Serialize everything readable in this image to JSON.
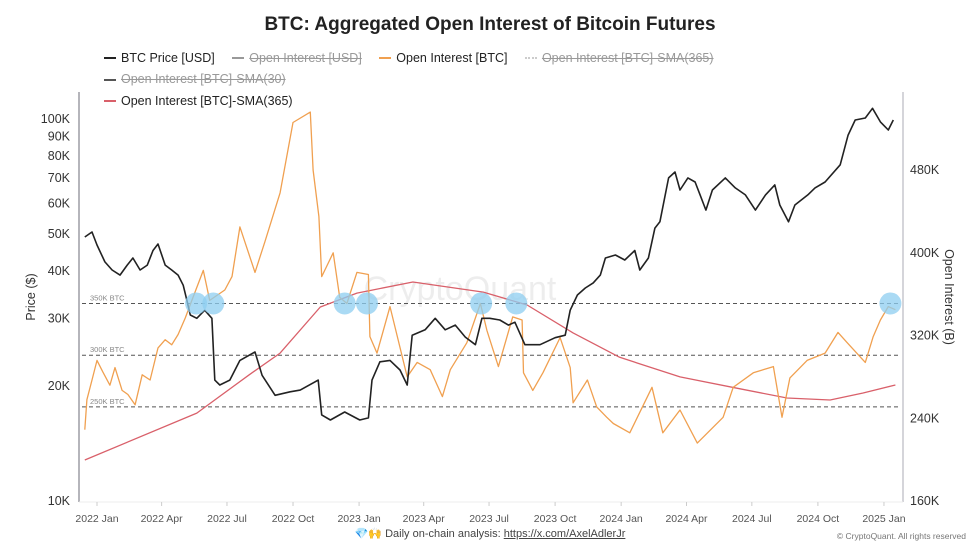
{
  "chart_data": {
    "type": "line",
    "title": "BTC: Aggregated Open Interest of Bitcoin Futures",
    "legend": [
      {
        "name": "BTC Price [USD]",
        "color": "#222222",
        "visible": true,
        "style": "solid"
      },
      {
        "name": "Open Interest [USD]",
        "color": "#999999",
        "visible": false,
        "style": "solid"
      },
      {
        "name": "Open Interest [BTC]",
        "color": "#f0a050",
        "visible": true,
        "style": "solid"
      },
      {
        "name": "Open Interest [BTC]-SMA(365)",
        "color": "#cccccc",
        "visible": false,
        "style": "dotted"
      },
      {
        "name": "Open Interest [BTC]-SMA(30)",
        "color": "#555555",
        "visible": false,
        "style": "dashed"
      },
      {
        "name": "Open Interest [BTC]-SMA(365)",
        "color": "#d9606a",
        "visible": true,
        "style": "solid"
      }
    ],
    "y_left": {
      "label": "Price ($)",
      "scale": "log",
      "range": [
        10000,
        110000
      ],
      "ticks": [
        {
          "v": 10000,
          "t": "10K"
        },
        {
          "v": 20000,
          "t": "20K"
        },
        {
          "v": 30000,
          "t": "30K"
        },
        {
          "v": 40000,
          "t": "40K"
        },
        {
          "v": 50000,
          "t": "50K"
        },
        {
          "v": 60000,
          "t": "60K"
        },
        {
          "v": 70000,
          "t": "70K"
        },
        {
          "v": 80000,
          "t": "80K"
        },
        {
          "v": 90000,
          "t": "90K"
        },
        {
          "v": 100000,
          "t": "100K"
        }
      ]
    },
    "y_right": {
      "label": "Open Interest (B)",
      "scale": "linear",
      "range": [
        160000,
        560000
      ],
      "ticks": [
        {
          "v": 160000,
          "t": "160K"
        },
        {
          "v": 240000,
          "t": "240K"
        },
        {
          "v": 320000,
          "t": "320K"
        },
        {
          "v": 400000,
          "t": "400K"
        },
        {
          "v": 480000,
          "t": "480K"
        }
      ]
    },
    "x_ticks": [
      {
        "d": "2022-01-01",
        "t": "2022 Jan"
      },
      {
        "d": "2022-04-01",
        "t": "2022 Apr"
      },
      {
        "d": "2022-07-01",
        "t": "2022 Jul"
      },
      {
        "d": "2022-10-01",
        "t": "2022 Oct"
      },
      {
        "d": "2023-01-01",
        "t": "2023 Jan"
      },
      {
        "d": "2023-04-01",
        "t": "2023 Apr"
      },
      {
        "d": "2023-07-01",
        "t": "2023 Jul"
      },
      {
        "d": "2023-10-01",
        "t": "2023 Oct"
      },
      {
        "d": "2024-01-01",
        "t": "2024 Jan"
      },
      {
        "d": "2024-04-01",
        "t": "2024 Apr"
      },
      {
        "d": "2024-07-01",
        "t": "2024 Jul"
      },
      {
        "d": "2024-10-01",
        "t": "2024 Oct"
      },
      {
        "d": "2025-01-01",
        "t": "2025 Jan"
      }
    ],
    "reference_lines": [
      {
        "value": 350000,
        "label": "350K BTC"
      },
      {
        "value": 300000,
        "label": "300K BTC"
      },
      {
        "value": 250000,
        "label": "250K BTC"
      }
    ],
    "highlight_dates": [
      "2022-05-19",
      "2022-06-12",
      "2022-12-12",
      "2023-01-12",
      "2023-06-20",
      "2023-08-08",
      "2025-01-10"
    ],
    "highlight_value": 350000,
    "highlight_color": "#8ecdf0",
    "btc_price": [
      [
        "2021-12-15",
        48800
      ],
      [
        "2021-12-25",
        50300
      ],
      [
        "2022-01-01",
        46500
      ],
      [
        "2022-01-12",
        42000
      ],
      [
        "2022-01-22",
        40000
      ],
      [
        "2022-02-02",
        38800
      ],
      [
        "2022-02-12",
        41200
      ],
      [
        "2022-02-20",
        43000
      ],
      [
        "2022-03-02",
        40000
      ],
      [
        "2022-03-12",
        41200
      ],
      [
        "2022-03-20",
        45000
      ],
      [
        "2022-03-27",
        46800
      ],
      [
        "2022-04-06",
        41200
      ],
      [
        "2022-04-15",
        40000
      ],
      [
        "2022-04-24",
        38800
      ],
      [
        "2022-05-01",
        36500
      ],
      [
        "2022-05-06",
        33400
      ],
      [
        "2022-05-11",
        30500
      ],
      [
        "2022-05-20",
        29900
      ],
      [
        "2022-05-31",
        31400
      ],
      [
        "2022-06-10",
        29900
      ],
      [
        "2022-06-14",
        20600
      ],
      [
        "2022-06-21",
        20000
      ],
      [
        "2022-07-05",
        20600
      ],
      [
        "2022-07-19",
        23200
      ],
      [
        "2022-08-09",
        24400
      ],
      [
        "2022-08-19",
        21200
      ],
      [
        "2022-09-06",
        18800
      ],
      [
        "2022-09-27",
        19200
      ],
      [
        "2022-10-11",
        19400
      ],
      [
        "2022-11-05",
        20600
      ],
      [
        "2022-11-10",
        16700
      ],
      [
        "2022-11-22",
        16200
      ],
      [
        "2022-12-12",
        17000
      ],
      [
        "2023-01-02",
        16200
      ],
      [
        "2023-01-14",
        16400
      ],
      [
        "2023-01-19",
        20600
      ],
      [
        "2023-01-30",
        23000
      ],
      [
        "2023-02-13",
        23200
      ],
      [
        "2023-02-27",
        21900
      ],
      [
        "2023-03-09",
        20000
      ],
      [
        "2023-03-16",
        27000
      ],
      [
        "2023-04-03",
        27900
      ],
      [
        "2023-04-17",
        29900
      ],
      [
        "2023-05-01",
        27900
      ],
      [
        "2023-05-15",
        28700
      ],
      [
        "2023-05-29",
        26700
      ],
      [
        "2023-06-12",
        25500
      ],
      [
        "2023-06-21",
        29900
      ],
      [
        "2023-07-02",
        29900
      ],
      [
        "2023-07-16",
        29600
      ],
      [
        "2023-07-28",
        28700
      ],
      [
        "2023-08-06",
        29200
      ],
      [
        "2023-08-20",
        25500
      ],
      [
        "2023-09-10",
        25500
      ],
      [
        "2023-10-01",
        26600
      ],
      [
        "2023-10-15",
        27000
      ],
      [
        "2023-10-22",
        31400
      ],
      [
        "2023-11-01",
        34400
      ],
      [
        "2023-11-12",
        35900
      ],
      [
        "2023-11-23",
        37000
      ],
      [
        "2023-12-03",
        38800
      ],
      [
        "2023-12-10",
        43000
      ],
      [
        "2023-12-24",
        43800
      ],
      [
        "2024-01-06",
        42500
      ],
      [
        "2024-01-20",
        45000
      ],
      [
        "2024-01-27",
        40000
      ],
      [
        "2024-02-08",
        43000
      ],
      [
        "2024-02-17",
        51500
      ],
      [
        "2024-02-24",
        53500
      ],
      [
        "2024-03-07",
        69700
      ],
      [
        "2024-03-16",
        72200
      ],
      [
        "2024-03-23",
        64800
      ],
      [
        "2024-04-03",
        69700
      ],
      [
        "2024-04-13",
        68000
      ],
      [
        "2024-04-20",
        62900
      ],
      [
        "2024-04-28",
        57400
      ],
      [
        "2024-05-07",
        64800
      ],
      [
        "2024-05-25",
        69700
      ],
      [
        "2024-06-08",
        65600
      ],
      [
        "2024-06-22",
        62900
      ],
      [
        "2024-07-06",
        57400
      ],
      [
        "2024-07-20",
        62900
      ],
      [
        "2024-08-02",
        66800
      ],
      [
        "2024-08-09",
        59200
      ],
      [
        "2024-08-21",
        53500
      ],
      [
        "2024-08-30",
        59200
      ],
      [
        "2024-09-17",
        62900
      ],
      [
        "2024-09-27",
        65600
      ],
      [
        "2024-10-11",
        68000
      ],
      [
        "2024-11-01",
        75400
      ],
      [
        "2024-11-12",
        90200
      ],
      [
        "2024-11-22",
        98800
      ],
      [
        "2024-12-06",
        100000
      ],
      [
        "2024-12-16",
        106000
      ],
      [
        "2024-12-27",
        97700
      ],
      [
        "2025-01-07",
        93000
      ],
      [
        "2025-01-14",
        98800
      ]
    ],
    "open_interest_btc": [
      [
        "2021-12-15",
        228000
      ],
      [
        "2021-12-18",
        257000
      ],
      [
        "2021-12-25",
        276000
      ],
      [
        "2022-01-01",
        295000
      ],
      [
        "2022-01-09",
        284000
      ],
      [
        "2022-01-19",
        271000
      ],
      [
        "2022-01-26",
        288000
      ],
      [
        "2022-02-05",
        266000
      ],
      [
        "2022-02-13",
        262000
      ],
      [
        "2022-02-23",
        252000
      ],
      [
        "2022-03-05",
        281000
      ],
      [
        "2022-03-16",
        276000
      ],
      [
        "2022-03-27",
        307000
      ],
      [
        "2022-04-06",
        315000
      ],
      [
        "2022-04-15",
        310000
      ],
      [
        "2022-04-24",
        320000
      ],
      [
        "2022-05-04",
        336000
      ],
      [
        "2022-05-11",
        349000
      ],
      [
        "2022-05-29",
        382000
      ],
      [
        "2022-06-07",
        353000
      ],
      [
        "2022-06-28",
        363000
      ],
      [
        "2022-07-08",
        376000
      ],
      [
        "2022-07-19",
        424000
      ],
      [
        "2022-08-09",
        380000
      ],
      [
        "2022-08-23",
        410000
      ],
      [
        "2022-09-13",
        457000
      ],
      [
        "2022-10-01",
        525000
      ],
      [
        "2022-10-25",
        535000
      ],
      [
        "2022-10-29",
        479000
      ],
      [
        "2022-11-06",
        434000
      ],
      [
        "2022-11-10",
        376000
      ],
      [
        "2022-11-26",
        399000
      ],
      [
        "2022-12-05",
        356000
      ],
      [
        "2022-12-15",
        350000
      ],
      [
        "2022-12-29",
        380000
      ],
      [
        "2023-01-14",
        378000
      ],
      [
        "2023-01-16",
        318000
      ],
      [
        "2023-01-26",
        302000
      ],
      [
        "2023-02-13",
        347000
      ],
      [
        "2023-03-09",
        279000
      ],
      [
        "2023-03-23",
        293000
      ],
      [
        "2023-04-10",
        286000
      ],
      [
        "2023-04-27",
        260000
      ],
      [
        "2023-05-08",
        286000
      ],
      [
        "2023-05-31",
        312000
      ],
      [
        "2023-06-19",
        350000
      ],
      [
        "2023-06-28",
        324000
      ],
      [
        "2023-07-14",
        289000
      ],
      [
        "2023-08-03",
        337000
      ],
      [
        "2023-08-16",
        334000
      ],
      [
        "2023-08-18",
        283000
      ],
      [
        "2023-08-31",
        266000
      ],
      [
        "2023-09-14",
        283000
      ],
      [
        "2023-10-08",
        317000
      ],
      [
        "2023-10-22",
        288000
      ],
      [
        "2023-10-26",
        254000
      ],
      [
        "2023-11-15",
        276000
      ],
      [
        "2023-11-28",
        250000
      ],
      [
        "2023-12-12",
        240000
      ],
      [
        "2023-12-21",
        234000
      ],
      [
        "2024-01-13",
        225000
      ],
      [
        "2024-02-13",
        269000
      ],
      [
        "2024-02-28",
        225000
      ],
      [
        "2024-03-23",
        247000
      ],
      [
        "2024-04-16",
        215000
      ],
      [
        "2024-05-22",
        240000
      ],
      [
        "2024-06-05",
        269000
      ],
      [
        "2024-07-03",
        283000
      ],
      [
        "2024-07-31",
        289000
      ],
      [
        "2024-08-12",
        240000
      ],
      [
        "2024-08-23",
        278000
      ],
      [
        "2024-09-16",
        295000
      ],
      [
        "2024-10-11",
        302000
      ],
      [
        "2024-10-29",
        322000
      ],
      [
        "2024-11-11",
        312000
      ],
      [
        "2024-12-06",
        293000
      ],
      [
        "2024-12-17",
        318000
      ],
      [
        "2024-12-27",
        334000
      ],
      [
        "2025-01-07",
        347000
      ],
      [
        "2025-01-17",
        344000
      ]
    ],
    "open_interest_btc_sma365": [
      [
        "2021-12-15",
        198700
      ],
      [
        "2022-05-20",
        244000
      ],
      [
        "2022-08-01",
        281000
      ],
      [
        "2022-09-13",
        302000
      ],
      [
        "2022-11-08",
        346600
      ],
      [
        "2022-12-29",
        360000
      ],
      [
        "2023-01-20",
        363000
      ],
      [
        "2023-03-17",
        370800
      ],
      [
        "2023-06-23",
        361000
      ],
      [
        "2023-08-23",
        348500
      ],
      [
        "2023-10-26",
        321500
      ],
      [
        "2023-12-30",
        298000
      ],
      [
        "2024-03-23",
        279000
      ],
      [
        "2024-06-11",
        268000
      ],
      [
        "2024-08-19",
        258600
      ],
      [
        "2024-10-18",
        256700
      ],
      [
        "2024-12-03",
        263400
      ],
      [
        "2025-01-17",
        271200
      ]
    ]
  },
  "watermark": "CryptoQuant",
  "footer": {
    "emoji": "💎🙌",
    "text": "Daily on-chain analysis: ",
    "link": "https://x.com/AxelAdlerJr",
    "copyright": "© CryptoQuant. All rights reserved"
  }
}
